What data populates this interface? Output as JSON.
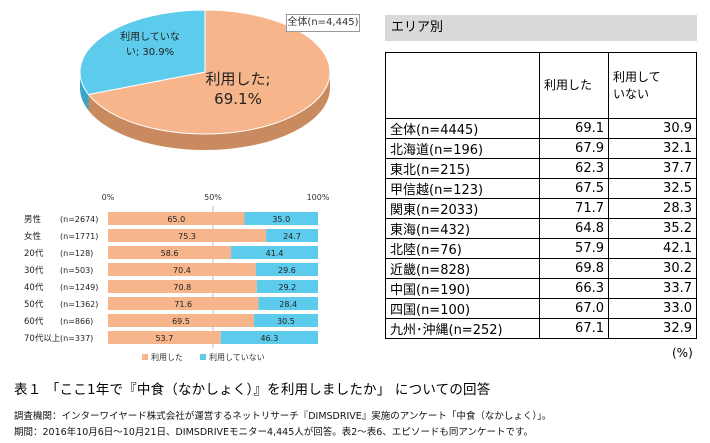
{
  "overall_label": "全体(n=4,445)",
  "area": {
    "title": "エリア別",
    "col1": "利用した",
    "col2_line1": "利用して",
    "col2_line2": "いない",
    "unit": "(%)"
  },
  "caption": "表１ 「ここ1年で『中食（なかしょく）』を利用しましたか」 についての回答",
  "notes": [
    "調査機関：インターワイヤード株式会社が運営するネットリサーチ『DIMSDRIVE』実施のアンケート「中食（なかしょく）」。",
    "期間：2016年10月6日～10月21日、DIMSDRIVEモニター4,445人が回答。表2～表6、エピソードも同アンケートです。"
  ],
  "chart_data": [
    {
      "type": "pie",
      "labels": [
        "利用した",
        "利用していない"
      ],
      "values": [
        69.1,
        30.9
      ],
      "slice_labels": [
        [
          "利用した;",
          "69.1%"
        ],
        [
          "利用していな",
          "い; 30.9%"
        ]
      ],
      "colors": [
        "#f6b58a",
        "#5dcbeb"
      ]
    },
    {
      "type": "bar",
      "stacked": true,
      "orientation": "horizontal",
      "categories": [
        "男性",
        "女性",
        "20代",
        "30代",
        "40代",
        "50代",
        "60代",
        "70代以上"
      ],
      "n_labels": [
        "(n=2674)",
        "(n=1771)",
        "(n=128)",
        "(n=503)",
        "(n=1249)",
        "(n=1362)",
        "(n=866)",
        "(n=337)"
      ],
      "series": [
        {
          "name": "利用した",
          "values": [
            65.0,
            75.3,
            58.6,
            70.4,
            70.8,
            71.6,
            69.5,
            53.7
          ],
          "color": "#f6b58a"
        },
        {
          "name": "利用していない",
          "values": [
            35.0,
            24.7,
            41.4,
            29.6,
            29.2,
            28.4,
            30.5,
            46.3
          ],
          "color": "#5dcbeb"
        }
      ],
      "xticks": [
        "0%",
        "50%",
        "100%"
      ],
      "xlim": [
        0,
        100
      ]
    },
    {
      "type": "table",
      "rows": [
        {
          "label": "全体(n=4445)",
          "used": "69.1",
          "not_used": "30.9"
        },
        {
          "label": "北海道(n=196)",
          "used": "67.9",
          "not_used": "32.1"
        },
        {
          "label": "東北(n=215)",
          "used": "62.3",
          "not_used": "37.7"
        },
        {
          "label": "甲信越(n=123)",
          "used": "67.5",
          "not_used": "32.5"
        },
        {
          "label": "関東(n=2033)",
          "used": "71.7",
          "not_used": "28.3"
        },
        {
          "label": "東海(n=432)",
          "used": "64.8",
          "not_used": "35.2"
        },
        {
          "label": "北陸(n=76)",
          "used": "57.9",
          "not_used": "42.1"
        },
        {
          "label": "近畿(n=828)",
          "used": "69.8",
          "not_used": "30.2"
        },
        {
          "label": "中国(n=190)",
          "used": "66.3",
          "not_used": "33.7"
        },
        {
          "label": "四国(n=100)",
          "used": "67.0",
          "not_used": "33.0"
        },
        {
          "label": "九州･沖縄(n=252)",
          "used": "67.1",
          "not_used": "32.9"
        }
      ]
    }
  ]
}
